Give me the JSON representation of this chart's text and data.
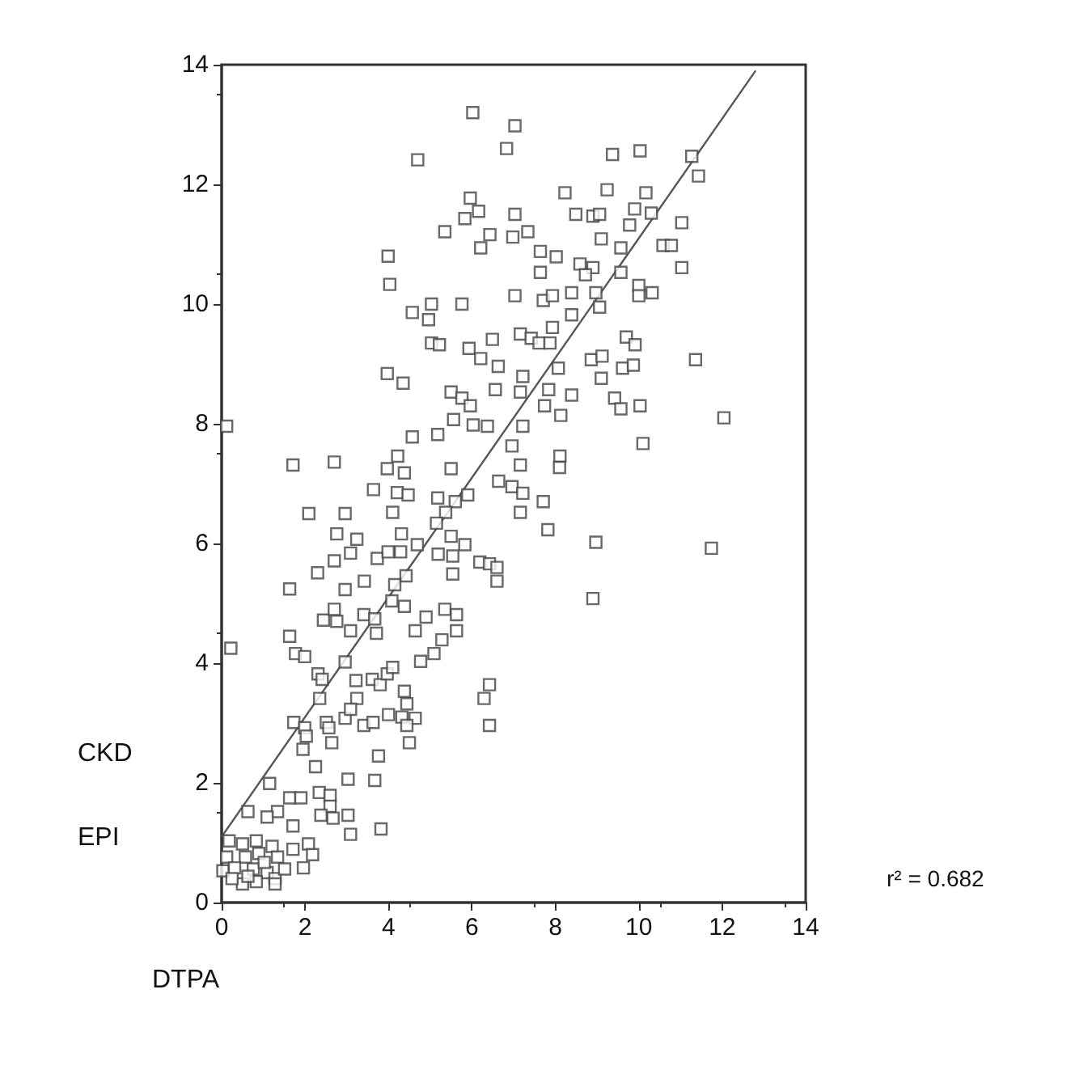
{
  "chart_data": {
    "type": "scatter",
    "xlabel": "DTPA",
    "ylabel": "CKD EPI",
    "annotations": [
      "r² = 0.682"
    ],
    "marker": "square",
    "grid": false,
    "xlim": [
      0,
      14
    ],
    "ylim": [
      0,
      14
    ],
    "xticks": [
      0,
      2,
      4,
      6,
      8,
      10,
      12,
      14
    ],
    "yticks": [
      0,
      2,
      4,
      6,
      8,
      10,
      12,
      14
    ],
    "series": [
      {
        "color": "#444444",
        "x": [
          6.02,
          7.03,
          6.83,
          4.7,
          9.37,
          10.03,
          11.27,
          11.43,
          5.96,
          6.16,
          5.83,
          5.35,
          6.43,
          6.21,
          7.03,
          6.98,
          7.34,
          8.23,
          9.24,
          10.17,
          9.9,
          10.3,
          8.49,
          8.9,
          9.06,
          9.1,
          9.78,
          11.03,
          10.58,
          10.78,
          9.57,
          11.03,
          7.64,
          8.02,
          7.64,
          8.59,
          8.9,
          8.72,
          9.57,
          3.99,
          4.03,
          4.57,
          5.03,
          5.76,
          4.96,
          7.03,
          7.71,
          7.93,
          8.39,
          8.97,
          9.06,
          10.0,
          10.0,
          10.32,
          8.39,
          7.93,
          5.03,
          5.22,
          5.93,
          6.21,
          6.49,
          7.16,
          7.42,
          7.61,
          7.87,
          9.7,
          9.91,
          8.86,
          9.12,
          9.61,
          9.87,
          11.36,
          6.63,
          8.07,
          3.97,
          4.35,
          9.1,
          7.22,
          5.5,
          5.76,
          5.96,
          6.56,
          7.16,
          7.84,
          7.74,
          8.39,
          9.42,
          9.57,
          10.03,
          8.13,
          12.04,
          5.56,
          6.03,
          6.37,
          7.22,
          5.18,
          4.57,
          0.12,
          6.96,
          10.1,
          4.22,
          8.11,
          1.71,
          2.7,
          3.97,
          4.38,
          5.5,
          7.16,
          8.1,
          6.64,
          6.96,
          7.22,
          7.71,
          3.64,
          4.21,
          4.47,
          5.18,
          5.6,
          5.9,
          4.1,
          5.37,
          7.16,
          2.09,
          2.96,
          7.82,
          8.97,
          11.74,
          2.76,
          3.24,
          4.31,
          5.15,
          5.5,
          5.83,
          4.69,
          3.09,
          2.7,
          3.73,
          3.99,
          4.29,
          5.19,
          5.54,
          6.19,
          6.42,
          6.6,
          2.3,
          5.54,
          4.42,
          3.42,
          4.15,
          6.6,
          1.63,
          2.96,
          8.9,
          1.63,
          1.77,
          1.99,
          0.22,
          2.44,
          2.7,
          2.76,
          3.09,
          3.41,
          3.67,
          3.71,
          4.08,
          4.38,
          4.64,
          4.77,
          4.9,
          5.09,
          5.28,
          5.35,
          5.63,
          5.63,
          2.96,
          3.22,
          3.61,
          3.8,
          3.97,
          4.1,
          2.31,
          2.41,
          2.35,
          3.24,
          4.38,
          4.44,
          6.42,
          6.29,
          6.42,
          1.73,
          1.99,
          2.51,
          2.57,
          2.64,
          2.96,
          3.09,
          3.41,
          3.63,
          4.0,
          4.32,
          4.64,
          4.44,
          4.5,
          1.95,
          2.03,
          2.25,
          3.76,
          3.03,
          3.67,
          1.15,
          1.63,
          1.9,
          2.34,
          2.6,
          2.6,
          2.38,
          2.67,
          3.03,
          3.09,
          3.82,
          1.34,
          1.09,
          0.63,
          1.71,
          2.08,
          2.18,
          1.96,
          1.71,
          0.18,
          0.5,
          0.83,
          1.21,
          0.12,
          0.57,
          0.89,
          1.34,
          0.03,
          0.31,
          0.5,
          0.76,
          1.09,
          1.28,
          1.51,
          0.83,
          0.25,
          1.02,
          1.28,
          0.63
        ],
        "values": [
          13.2,
          12.98,
          12.6,
          12.41,
          12.5,
          12.56,
          12.47,
          12.14,
          11.77,
          11.55,
          11.43,
          11.21,
          11.16,
          10.94,
          11.5,
          11.12,
          11.21,
          11.86,
          11.91,
          11.86,
          11.59,
          11.52,
          11.5,
          11.47,
          11.5,
          11.09,
          11.32,
          11.36,
          10.98,
          10.98,
          10.94,
          10.61,
          10.88,
          10.79,
          10.53,
          10.67,
          10.61,
          10.49,
          10.53,
          10.8,
          10.33,
          9.86,
          10.0,
          10.0,
          9.74,
          10.14,
          10.06,
          10.14,
          10.19,
          10.19,
          9.95,
          10.31,
          10.14,
          10.19,
          9.82,
          9.61,
          9.35,
          9.32,
          9.26,
          9.09,
          9.41,
          9.5,
          9.43,
          9.35,
          9.35,
          9.45,
          9.32,
          9.07,
          9.13,
          8.93,
          8.98,
          9.07,
          8.96,
          8.93,
          8.84,
          8.68,
          8.76,
          8.79,
          8.53,
          8.43,
          8.3,
          8.57,
          8.53,
          8.57,
          8.3,
          8.48,
          8.43,
          8.25,
          8.3,
          8.14,
          8.1,
          8.07,
          7.98,
          7.96,
          7.96,
          7.82,
          7.78,
          7.96,
          7.63,
          7.67,
          7.46,
          7.46,
          7.31,
          7.36,
          7.25,
          7.18,
          7.25,
          7.31,
          7.27,
          7.04,
          6.95,
          6.84,
          6.7,
          6.9,
          6.85,
          6.81,
          6.76,
          6.7,
          6.81,
          6.52,
          6.52,
          6.52,
          6.5,
          6.5,
          6.23,
          6.02,
          5.92,
          6.16,
          6.07,
          6.16,
          6.34,
          6.12,
          5.98,
          5.98,
          5.84,
          5.71,
          5.75,
          5.86,
          5.86,
          5.82,
          5.79,
          5.69,
          5.66,
          5.6,
          5.51,
          5.49,
          5.46,
          5.37,
          5.31,
          5.37,
          5.24,
          5.23,
          5.08,
          4.45,
          4.16,
          4.11,
          4.25,
          4.72,
          4.9,
          4.7,
          4.54,
          4.81,
          4.74,
          4.5,
          5.04,
          4.95,
          4.54,
          4.03,
          4.77,
          4.16,
          4.39,
          4.9,
          4.81,
          4.54,
          4.02,
          3.71,
          3.73,
          3.64,
          3.82,
          3.93,
          3.82,
          3.73,
          3.41,
          3.41,
          3.53,
          3.32,
          3.64,
          3.41,
          2.96,
          3.01,
          2.92,
          3.01,
          2.92,
          2.67,
          3.08,
          3.23,
          2.96,
          3.01,
          3.14,
          3.1,
          3.08,
          2.96,
          2.67,
          2.56,
          2.78,
          2.27,
          2.45,
          2.06,
          2.04,
          1.99,
          1.75,
          1.75,
          1.84,
          1.79,
          1.61,
          1.46,
          1.41,
          1.46,
          1.14,
          1.23,
          1.52,
          1.43,
          1.52,
          1.28,
          0.98,
          0.8,
          0.58,
          0.89,
          1.03,
          0.98,
          1.03,
          0.94,
          0.76,
          0.76,
          0.82,
          0.76,
          0.53,
          0.58,
          0.31,
          0.56,
          0.5,
          0.4,
          0.56,
          0.35,
          0.4,
          0.67,
          0.31,
          0.44
        ]
      },
      {
        "type": "line",
        "color": "#555555",
        "marker": "none",
        "x": [
          0,
          12.8
        ],
        "values": [
          1.1,
          13.9
        ]
      }
    ]
  }
}
